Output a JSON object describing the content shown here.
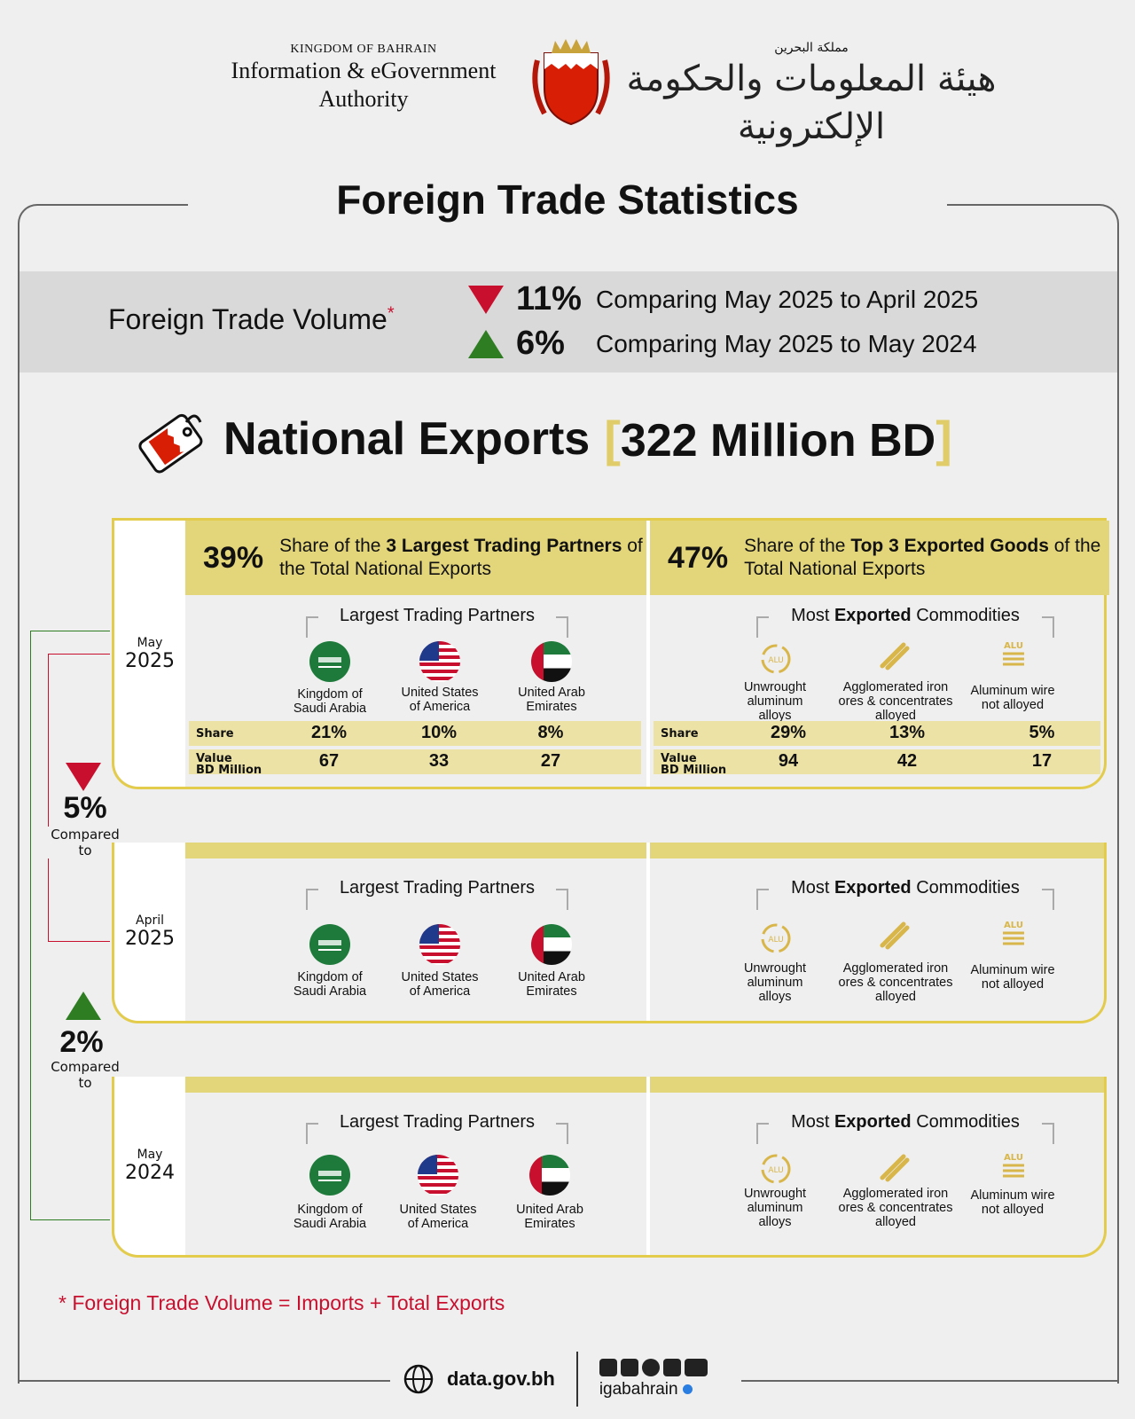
{
  "header": {
    "kingdom_en": "KINGDOM OF BAHRAIN",
    "org_en_1": "Information & eGovernment",
    "org_en_2": "Authority",
    "kingdom_ar": "مملكة البحرين",
    "org_ar": "هيئة المعلومات والحكومة الإلكترونية"
  },
  "title": "Foreign Trade Statistics",
  "trade_volume": {
    "label": "Foreign Trade Volume",
    "marker": "*",
    "rows": [
      {
        "pct": "11%",
        "direction": "down",
        "text": "Comparing May 2025 to April 2025"
      },
      {
        "pct": "6%",
        "direction": "up",
        "text": "Comparing May 2025 to May 2024"
      }
    ]
  },
  "national_exports": {
    "label": "National Exports",
    "value": "322 Million BD",
    "bracket_open": "[",
    "bracket_close": "]"
  },
  "may2025": {
    "month": "May",
    "year": "2025",
    "partners_share_pct": "39%",
    "partners_share_pre": "Share of the ",
    "partners_share_bold": "3 Largest Trading Partners",
    "partners_share_post": " of the Total National Exports",
    "goods_share_pct": "47%",
    "goods_share_pre": "Share of the ",
    "goods_share_bold": "Top 3 Exported Goods",
    "goods_share_post": " of the Total National Exports",
    "partners_title": "Largest Trading Partners",
    "commodities_title_pre": "Most ",
    "commodities_title_bold": "Exported",
    "commodities_title_post": " Commodities",
    "partners": [
      {
        "name_1": "Kingdom of",
        "name_2": "Saudi Arabia",
        "share": "21%",
        "value": "67",
        "flag": "saudi-flag-icon"
      },
      {
        "name_1": "United States",
        "name_2": "of America",
        "share": "10%",
        "value": "33",
        "flag": "usa-flag-icon"
      },
      {
        "name_1": "United Arab",
        "name_2": "Emirates",
        "share": "8%",
        "value": "27",
        "flag": "uae-flag-icon"
      }
    ],
    "commodities": [
      {
        "name_1": "Unwrought",
        "name_2": "aluminum",
        "name_3": "alloys",
        "share": "29%",
        "value": "94"
      },
      {
        "name_1": "Agglomerated iron",
        "name_2": "ores & concentrates",
        "name_3": "alloyed",
        "share": "13%",
        "value": "42"
      },
      {
        "name_1": "Aluminum wire",
        "name_2": "not alloyed",
        "name_3": "",
        "share": "5%",
        "value": "17"
      }
    ],
    "row_share": "Share",
    "row_value_1": "Value",
    "row_value_2": "BD Million"
  },
  "april2025": {
    "month": "April",
    "year": "2025"
  },
  "may2024": {
    "month": "May",
    "year": "2024"
  },
  "comparisons": [
    {
      "pct": "5%",
      "direction": "down",
      "label_1": "Compared",
      "label_2": "to"
    },
    {
      "pct": "2%",
      "direction": "up",
      "label_1": "Compared",
      "label_2": "to"
    }
  ],
  "icon_text": {
    "alu": "ALU"
  },
  "footnote": "*  Foreign Trade Volume = Imports + Total Exports",
  "footer": {
    "site": "data.gov.bh",
    "handle": "igabahrain"
  },
  "colors": {
    "accent": "#e3d57a",
    "down": "#c8102e",
    "up": "#2f7d22",
    "border": "#e3cb4c"
  }
}
